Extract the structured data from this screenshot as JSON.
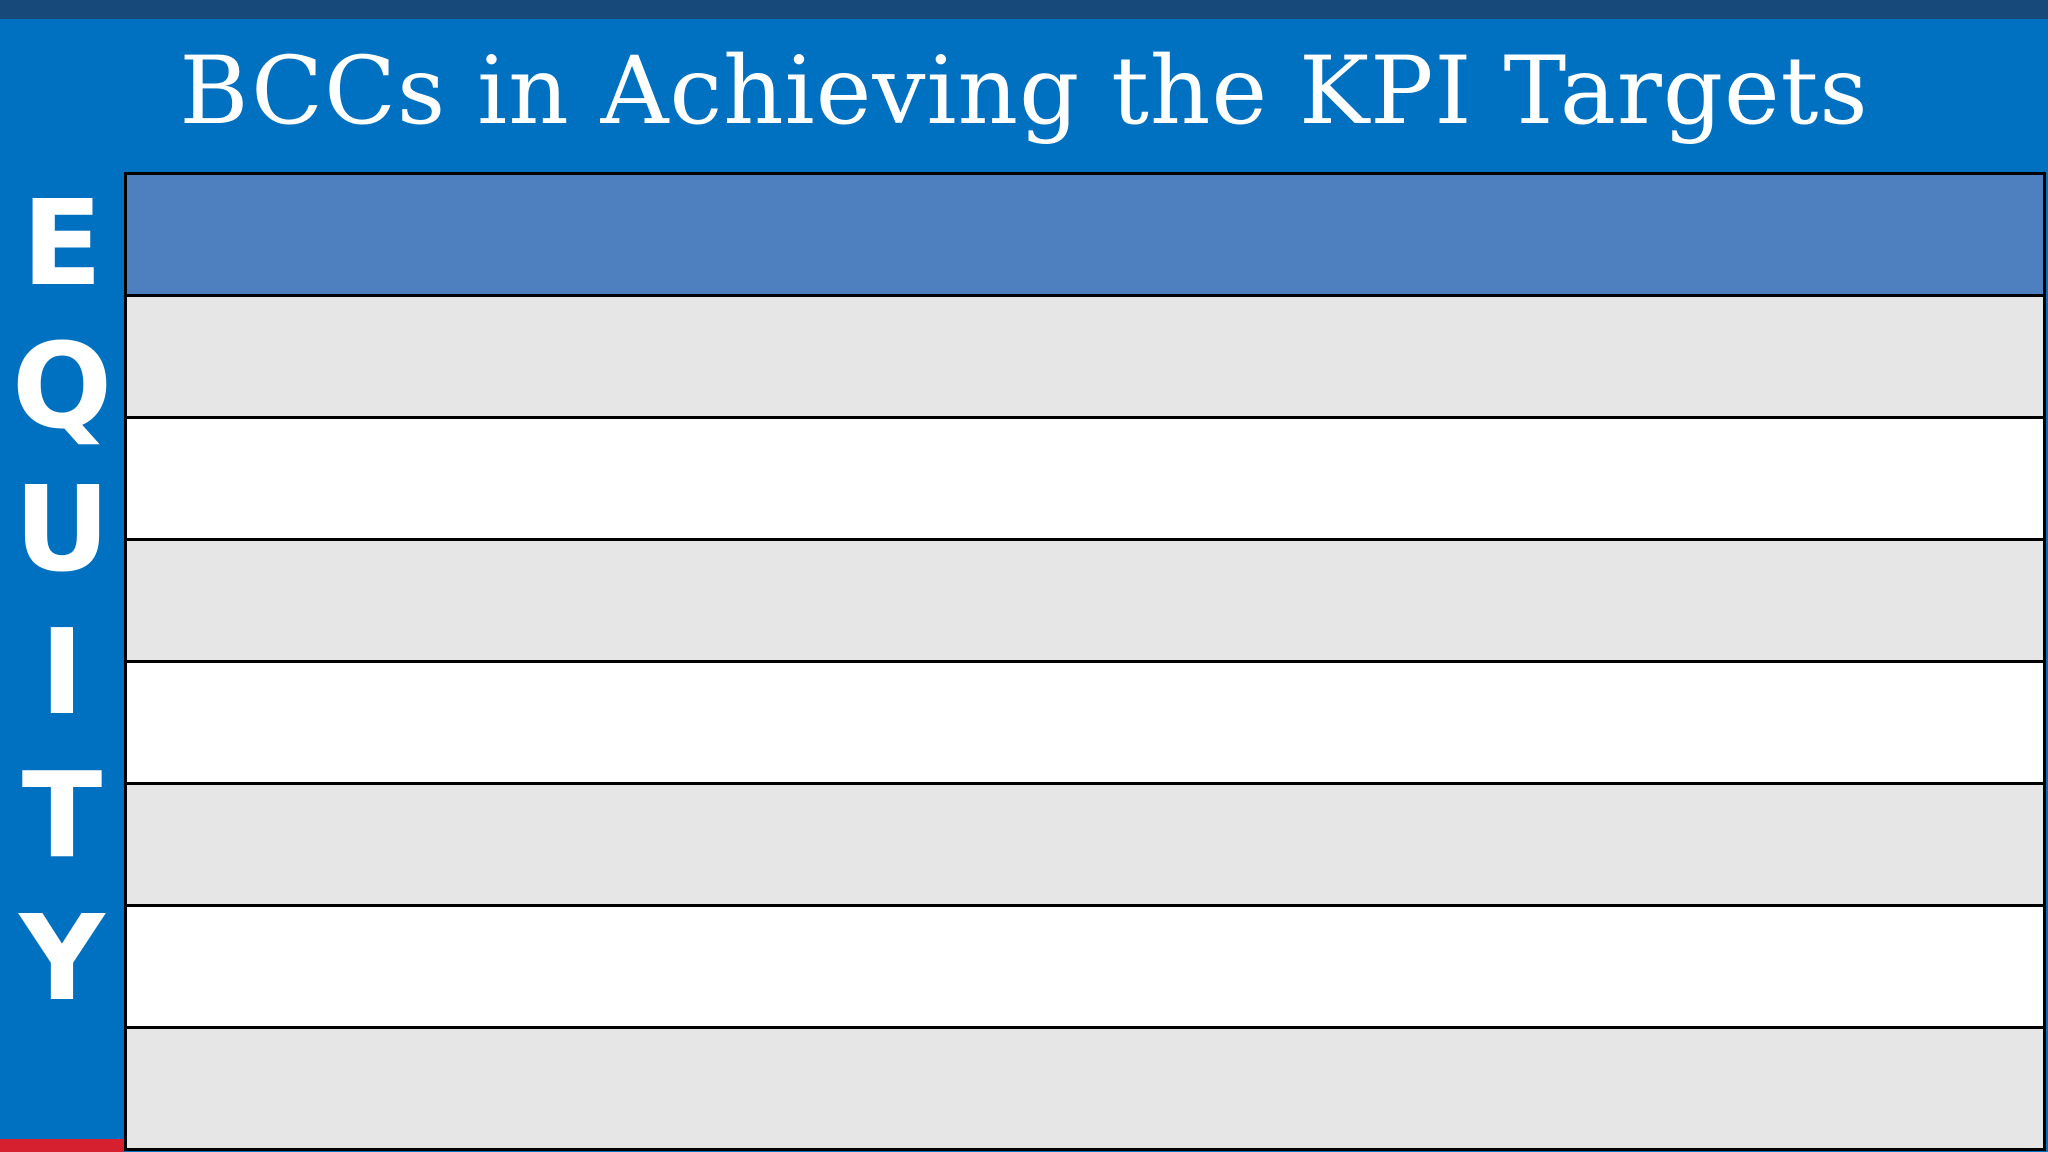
{
  "slide": {
    "kind": "presentation-slide"
  },
  "colors": {
    "background": "#0070C0",
    "top_bar": "#18497B",
    "table_header": "#4E80BF",
    "row_gray": "#E6E6E6",
    "row_white": "#FFFFFF",
    "border": "#000000",
    "accent_red": "#D7202F",
    "text": "#FFFFFF"
  },
  "title": {
    "text": "BCCs in Achieving the KPI Targets"
  },
  "vertical_label": {
    "text": "EQUITY",
    "letters": [
      "E",
      "Q",
      "U",
      "I",
      "T",
      "Y"
    ]
  },
  "table": {
    "rows": [
      {
        "role": "header",
        "shade": "header",
        "label": ""
      },
      {
        "role": "body",
        "shade": "gray",
        "label": ""
      },
      {
        "role": "body",
        "shade": "white",
        "label": ""
      },
      {
        "role": "body",
        "shade": "gray",
        "label": ""
      },
      {
        "role": "body",
        "shade": "white",
        "label": ""
      },
      {
        "role": "body",
        "shade": "gray",
        "label": ""
      },
      {
        "role": "body",
        "shade": "white",
        "label": ""
      },
      {
        "role": "body",
        "shade": "gray",
        "label": ""
      }
    ]
  }
}
